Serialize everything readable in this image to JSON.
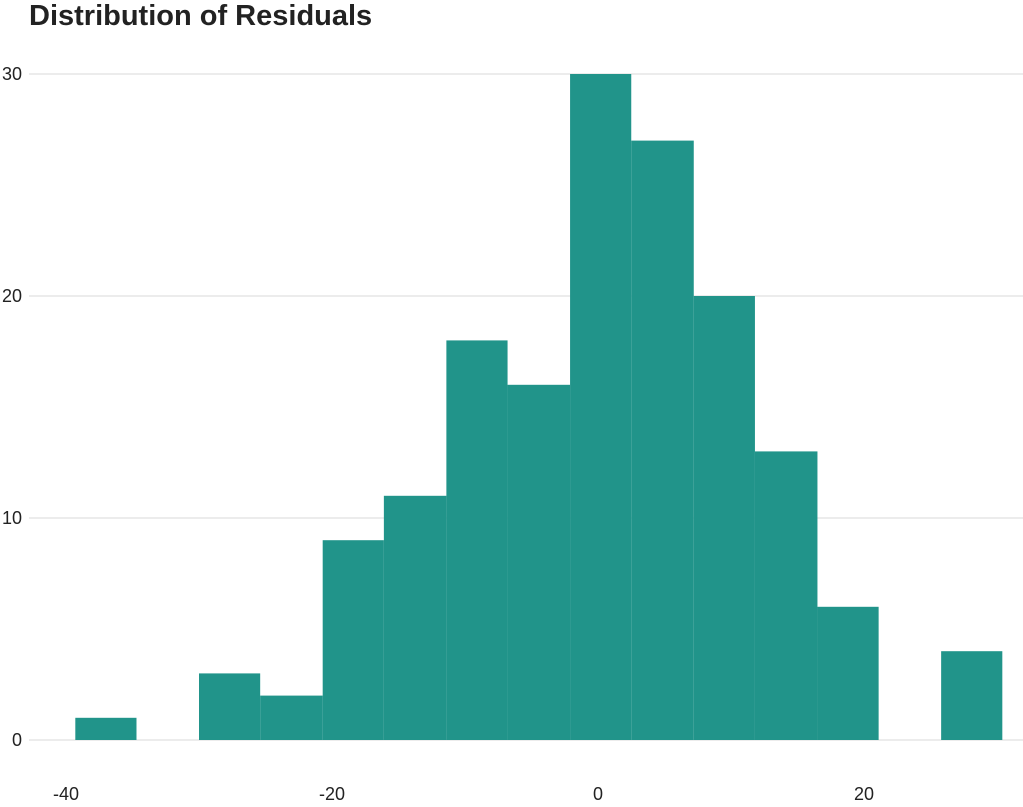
{
  "chart_data": {
    "type": "bar",
    "title": "Distribution of Residuals",
    "xlabel": "",
    "ylabel": "",
    "bar_color": "#21948A",
    "grid_color": "#D9D9D9",
    "bin_edges": [
      -39.3,
      -34.7,
      -30.0,
      -25.4,
      -20.7,
      -16.1,
      -11.4,
      -6.8,
      -2.1,
      2.5,
      7.2,
      11.8,
      16.5,
      21.1,
      25.8,
      30.4
    ],
    "values": [
      1,
      0,
      3,
      2,
      9,
      11,
      18,
      16,
      30,
      27,
      20,
      13,
      6,
      0,
      4
    ],
    "xlim": [
      -43.3,
      31.4
    ],
    "ylim": [
      0,
      30
    ],
    "xticks": [
      -40,
      -20,
      0,
      20
    ],
    "xtick_labels": [
      "-40",
      "-20",
      "0",
      "20"
    ],
    "yticks": [
      0,
      10,
      20,
      30
    ],
    "ytick_labels": [
      "0",
      "10",
      "20",
      "30"
    ],
    "grid": "horizontal"
  }
}
